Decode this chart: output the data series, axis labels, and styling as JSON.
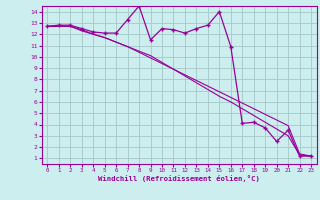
{
  "xlabel": "Windchill (Refroidissement éolien,°C)",
  "x_values": [
    0,
    1,
    2,
    3,
    4,
    5,
    6,
    7,
    8,
    9,
    10,
    11,
    12,
    13,
    14,
    15,
    16,
    17,
    18,
    19,
    20,
    21,
    22,
    23
  ],
  "line1_y": [
    12.7,
    12.8,
    12.8,
    12.5,
    12.2,
    12.1,
    12.1,
    13.3,
    14.5,
    11.5,
    12.5,
    12.4,
    12.1,
    12.5,
    12.8,
    14.0,
    10.9,
    4.1,
    4.2,
    3.7,
    2.5,
    3.5,
    1.2,
    1.2
  ],
  "line2_y": [
    12.7,
    12.7,
    12.7,
    12.4,
    12.0,
    11.7,
    11.3,
    10.9,
    10.4,
    9.9,
    9.4,
    8.9,
    8.4,
    7.9,
    7.4,
    6.9,
    6.4,
    5.9,
    5.4,
    4.9,
    4.4,
    3.9,
    1.4,
    1.2
  ],
  "line3_y": [
    12.7,
    12.7,
    12.7,
    12.3,
    12.0,
    11.7,
    11.3,
    10.9,
    10.5,
    10.1,
    9.5,
    8.9,
    8.3,
    7.7,
    7.1,
    6.5,
    6.0,
    5.4,
    4.8,
    4.2,
    3.6,
    3.0,
    1.3,
    1.2
  ],
  "line_color": "#990099",
  "bg_color": "#cceeee",
  "grid_color": "#aacccc",
  "xlim": [
    -0.5,
    23.5
  ],
  "ylim": [
    0.5,
    14.5
  ],
  "yticks": [
    1,
    2,
    3,
    4,
    5,
    6,
    7,
    8,
    9,
    10,
    11,
    12,
    13,
    14
  ],
  "xticks": [
    0,
    1,
    2,
    3,
    4,
    5,
    6,
    7,
    8,
    9,
    10,
    11,
    12,
    13,
    14,
    15,
    16,
    17,
    18,
    19,
    20,
    21,
    22,
    23
  ]
}
